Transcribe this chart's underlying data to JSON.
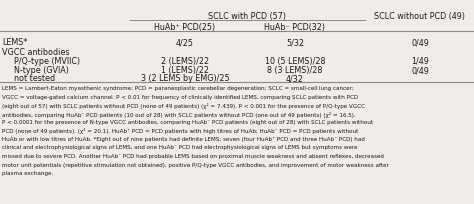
{
  "title_col1": "SCLC with PCD (57)",
  "title_col2": "SCLC without PCD (49)",
  "subcol1": "HuAb⁺ PCD(25)",
  "subcol2": "HuAb⁻ PCD(32)",
  "rows": [
    [
      "LEMS*",
      "4/25",
      "5/32",
      "0/49"
    ],
    [
      "VGCC antibodies",
      "",
      "",
      ""
    ],
    [
      "P/Q-type (MVIIC)",
      "2 (LEMS)/22",
      "10 (5 LEMS)/28",
      "1/49"
    ],
    [
      "N-type (GVIA)",
      "1 (LEMS)/22",
      "8 (3 LEMS)/28",
      "0/49"
    ],
    [
      "not tested",
      "3 (2 LEMS by EMG)/25",
      "4/32",
      ""
    ]
  ],
  "footnote_lines": [
    "LEMS = Lambert-Eaton myasthenic syndrome; PCD = paraneoplastic cerebellar degeneration; SCLC = small-cell lung cancer;",
    "VGCC = voltage-gated calcium channel. P < 0.01 for frequency of clinically identified LEMS, comparing SCLC patients with PCD",
    "(eight out of 57) with SCLC patients without PCD (none of 49 patients) (χ² = 7.439). P < 0.001 for the presence of P/Q-type VGCC",
    "antibodies, comparing HuAb⁻ PCD patients (10 out of 28) with SCLC patients without PCD (one out of 49 patients) (χ² = 16.5).",
    "P < 0.0001 for the presence of N-type VGCC antibodies, comparing HuAb⁻ PCD patients (eight out of 28) with SCLC patients without",
    "PCD (none of 49 patients). (χ² = 20.1). HuAb⁺ PCD = PCD patients with high titres of HuAb; HuAb⁻ PCD = PCD patients without",
    "HuAb or with low titres of HuAb. *Eight out of nine patients had definite LEMS; seven (four HuAb⁺ PCD and three HuAb⁻ PCD) had",
    "clinical and electrophysiological signs of LEMS, and one HuAb⁻ PCD had electrophysiological signs of LEMS but symptoms were",
    "missed due to severe PCD. Another HuAb⁻ PCD had probable LEMS based on proximal muscle weakness and absent reflexes, decreased",
    "motor unit potentials (repetitive stimulation not obtained), positive P/Q-type VGCC antibodies, and improvement of motor weakness after",
    "plasma exchange."
  ],
  "bg_color": "#f0ede8",
  "text_color": "#1a1a1a",
  "line_color": "#888888",
  "fs_header": 5.8,
  "fs_body": 5.8,
  "fs_footnote": 4.05
}
